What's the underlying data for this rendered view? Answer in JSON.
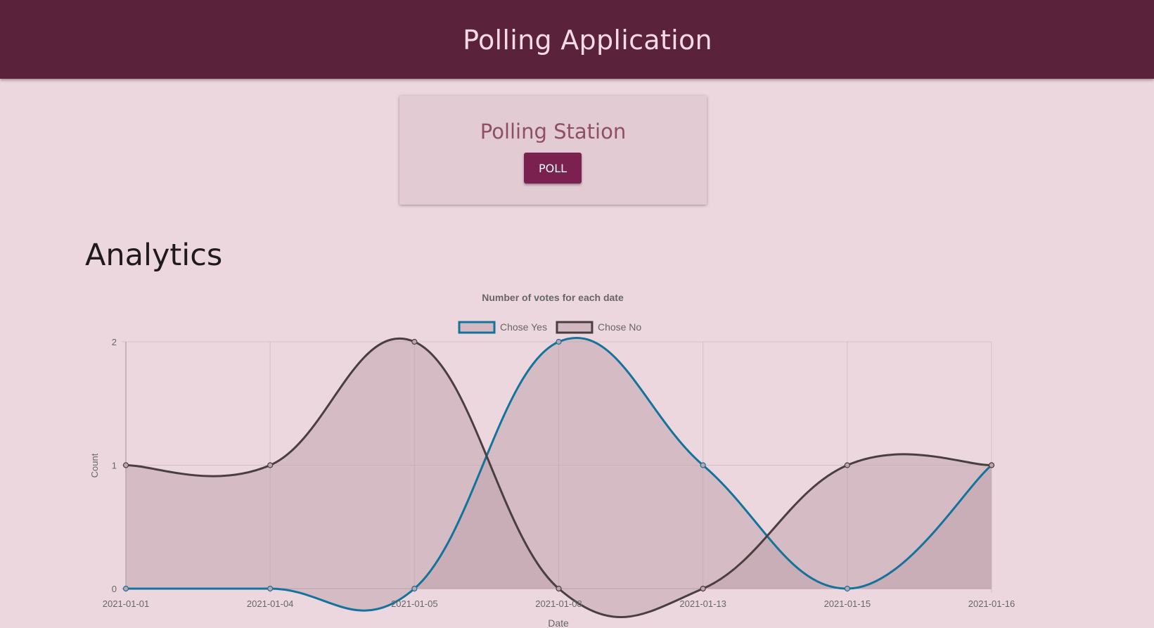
{
  "app": {
    "title": "Polling Application"
  },
  "station": {
    "title": "Polling Station",
    "button_label": "POLL"
  },
  "analytics": {
    "heading": "Analytics"
  },
  "colors": {
    "header_bg": "#5a223b",
    "page_bg": "#edd7df",
    "button_bg": "#7b2150",
    "yes_line": "#14739b",
    "no_line": "#4a3f3f",
    "area_fill": "#bfa4ad"
  },
  "chart_data": {
    "type": "line",
    "title": "Number of votes for each date",
    "xlabel": "Date",
    "ylabel": "Count",
    "categories": [
      "2021-01-01",
      "2021-01-04",
      "2021-01-05",
      "2021-01-08",
      "2021-01-13",
      "2021-01-15",
      "2021-01-16"
    ],
    "ylim": [
      0,
      2
    ],
    "yticks": [
      0,
      1,
      2
    ],
    "grid": true,
    "legend": "top",
    "series": [
      {
        "name": "Chose Yes",
        "values": [
          0,
          0,
          0,
          2,
          1,
          0,
          1
        ],
        "color": "#14739b"
      },
      {
        "name": "Chose No",
        "values": [
          1,
          1,
          2,
          0,
          0,
          1,
          1
        ],
        "color": "#4a3f3f"
      }
    ]
  }
}
